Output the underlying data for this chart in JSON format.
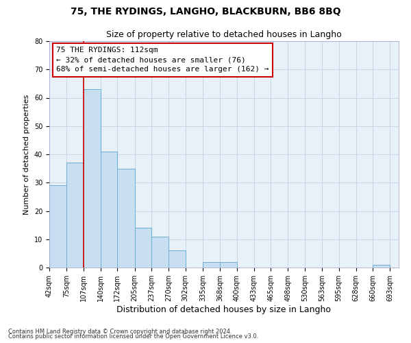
{
  "title": "75, THE RYDINGS, LANGHO, BLACKBURN, BB6 8BQ",
  "subtitle": "Size of property relative to detached houses in Langho",
  "xlabel": "Distribution of detached houses by size in Langho",
  "ylabel": "Number of detached properties",
  "footer_line1": "Contains HM Land Registry data © Crown copyright and database right 2024.",
  "footer_line2": "Contains public sector information licensed under the Open Government Licence v3.0.",
  "bins": [
    42,
    75,
    107,
    140,
    172,
    205,
    237,
    270,
    302,
    335,
    368,
    400,
    433,
    465,
    498,
    530,
    563,
    595,
    628,
    660,
    693
  ],
  "bin_labels": [
    "42sqm",
    "75sqm",
    "107sqm",
    "140sqm",
    "172sqm",
    "205sqm",
    "237sqm",
    "270sqm",
    "302sqm",
    "335sqm",
    "368sqm",
    "400sqm",
    "433sqm",
    "465sqm",
    "498sqm",
    "530sqm",
    "563sqm",
    "595sqm",
    "628sqm",
    "660sqm",
    "693sqm"
  ],
  "bar_heights": [
    29,
    37,
    63,
    41,
    35,
    14,
    11,
    6,
    0,
    2,
    2,
    0,
    0,
    0,
    0,
    0,
    0,
    0,
    0,
    1,
    0
  ],
  "bar_color": "#c8dff2",
  "bar_edge_color": "#6aaed6",
  "grid_color": "#c8d8e8",
  "background_color": "#e8f0f8",
  "ylim": [
    0,
    80
  ],
  "yticks": [
    0,
    10,
    20,
    30,
    40,
    50,
    60,
    70,
    80
  ],
  "property_line_x": 107,
  "annotation_text_line1": "75 THE RYDINGS: 112sqm",
  "annotation_text_line2": "← 32% of detached houses are smaller (76)",
  "annotation_text_line3": "68% of semi-detached houses are larger (162) →",
  "annotation_box_color": "#ffffff",
  "annotation_box_edge_color": "#cc0000",
  "vline_color": "#cc0000",
  "title_fontsize": 10,
  "subtitle_fontsize": 9,
  "tick_fontsize": 7,
  "ylabel_fontsize": 8,
  "xlabel_fontsize": 9,
  "annotation_fontsize": 8,
  "footer_fontsize": 6
}
